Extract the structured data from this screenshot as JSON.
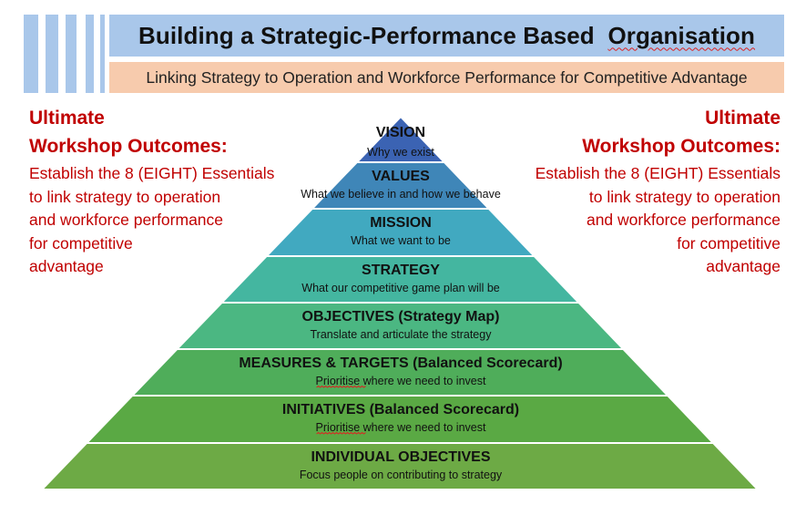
{
  "header": {
    "title_main": "Building a Strategic-Performance Based",
    "title_last": "Organisation",
    "subtitle": "Linking Strategy to Operation and Workforce Performance for Competitive Advantage"
  },
  "outcomes": {
    "left": {
      "heading_line1": "Ultimate",
      "heading_line2": "Workshop Outcomes:",
      "body": [
        "Establish the 8 (EIGHT) Essentials",
        "to link strategy to operation",
        "and workforce performance",
        "for competitive",
        "advantage"
      ]
    },
    "right": {
      "heading_line1": "Ultimate",
      "heading_line2": "Workshop Outcomes:",
      "body": [
        "Establish the 8 (EIGHT) Essentials",
        "to link strategy to operation",
        "and workforce performance",
        "for competitive",
        "advantage"
      ]
    }
  },
  "pyramid": {
    "levels": [
      {
        "title": "VISION",
        "subtitle": "Why we exist",
        "color": "#3b63b3"
      },
      {
        "title": "VALUES",
        "subtitle": "What we believe in and how we behave",
        "color": "#3f86b8"
      },
      {
        "title": "MISSION",
        "subtitle": "What we want to be",
        "color": "#41a9c0"
      },
      {
        "title": "STRATEGY",
        "subtitle": "What our competitive game plan will be",
        "color": "#44b6a0"
      },
      {
        "title": "OBJECTIVES (Strategy Map)",
        "subtitle": "Translate and articulate the strategy",
        "color": "#4bb782"
      },
      {
        "title": "MEASURES & TARGETS (Balanced Scorecard)",
        "subtitle": "Prioritise where we need to invest",
        "color": "#4fad5a"
      },
      {
        "title": "INITIATIVES (Balanced Scorecard)",
        "subtitle": "Prioritise where we need to invest",
        "color": "#5aa944"
      },
      {
        "title": "INDIVIDUAL OBJECTIVES",
        "subtitle": "Focus people on contributing to strategy",
        "color": "#6daa45"
      }
    ]
  }
}
